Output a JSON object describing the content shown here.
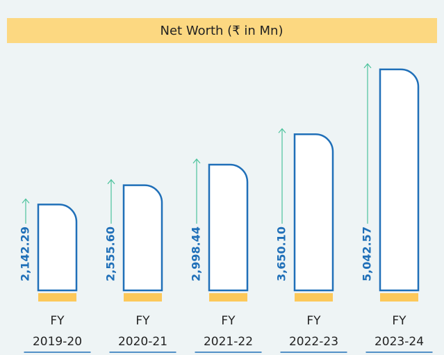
{
  "chart_data": {
    "type": "bar",
    "title": "Net Worth (₹ in Mn)",
    "categories": [
      "FY 2019-20",
      "FY 2020-21",
      "FY 2021-22",
      "FY 2022-23",
      "FY 2023-24"
    ],
    "values": [
      2142.29,
      2555.6,
      2998.44,
      3650.1,
      5042.57
    ],
    "value_labels": [
      "2,142.29",
      "2,555.60",
      "2,998.44",
      "3,650.10",
      "5,042.57"
    ],
    "color": "#1f6fb8",
    "ylim": [
      300,
      5100
    ]
  }
}
